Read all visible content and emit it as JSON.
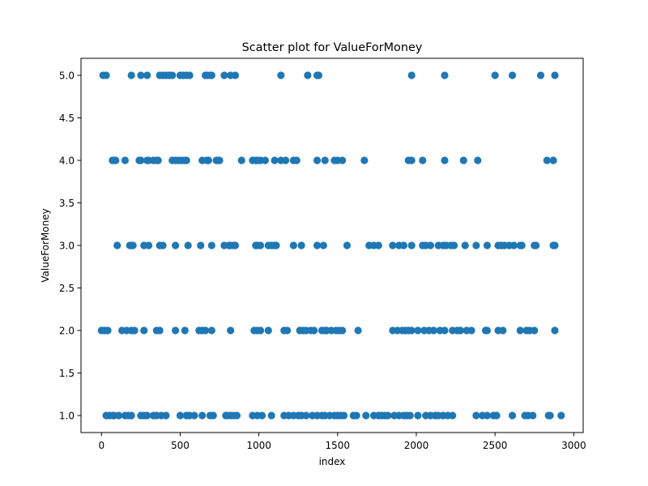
{
  "chart_data": {
    "type": "scatter",
    "title": "Scatter plot for ValueForMoney",
    "xlabel": "index",
    "ylabel": "ValueForMoney",
    "xlim": [
      -130,
      3060
    ],
    "ylim": [
      0.8,
      5.2
    ],
    "xticks": [
      0,
      500,
      1000,
      1500,
      2000,
      2500,
      3000
    ],
    "yticks": [
      1.0,
      1.5,
      2.0,
      2.5,
      3.0,
      3.5,
      4.0,
      4.5,
      5.0
    ],
    "grid": false,
    "marker_color": "#1f77b4",
    "points": {
      "5.0": [
        10,
        30,
        190,
        250,
        290,
        370,
        390,
        410,
        430,
        450,
        500,
        520,
        540,
        560,
        660,
        670,
        690,
        700,
        780,
        820,
        850,
        1140,
        1310,
        1370,
        1380,
        1970,
        2180,
        2500,
        2610,
        2790,
        2880
      ],
      "4.0": [
        70,
        80,
        90,
        150,
        240,
        250,
        290,
        300,
        330,
        350,
        360,
        450,
        470,
        490,
        510,
        530,
        540,
        640,
        670,
        680,
        730,
        740,
        750,
        890,
        960,
        980,
        990,
        1010,
        1040,
        1100,
        1140,
        1170,
        1220,
        1240,
        1370,
        1420,
        1480,
        1500,
        1530,
        1670,
        1950,
        1970,
        2040,
        2180,
        2300,
        2390,
        2830,
        2870
      ],
      "3.0": [
        100,
        180,
        190,
        200,
        270,
        300,
        370,
        390,
        470,
        550,
        630,
        700,
        780,
        810,
        820,
        840,
        850,
        980,
        990,
        1010,
        1060,
        1080,
        1100,
        1110,
        1220,
        1270,
        1370,
        1410,
        1560,
        1700,
        1730,
        1760,
        1850,
        1890,
        1920,
        1970,
        2040,
        2060,
        2090,
        2140,
        2170,
        2190,
        2220,
        2240,
        2310,
        2380,
        2450,
        2520,
        2540,
        2560,
        2590,
        2620,
        2660,
        2670,
        2750,
        2760,
        2870,
        2880
      ],
      "2.0": [
        0,
        20,
        40,
        130,
        160,
        190,
        210,
        270,
        350,
        370,
        470,
        530,
        620,
        640,
        660,
        700,
        820,
        970,
        990,
        1010,
        1060,
        1160,
        1180,
        1260,
        1280,
        1300,
        1330,
        1350,
        1400,
        1420,
        1430,
        1460,
        1490,
        1510,
        1530,
        1630,
        1850,
        1880,
        1910,
        1930,
        1950,
        1970,
        2010,
        2050,
        2080,
        2110,
        2150,
        2180,
        2230,
        2260,
        2280,
        2320,
        2350,
        2440,
        2450,
        2520,
        2550,
        2660,
        2700,
        2720,
        2750,
        2880
      ],
      "1.0": [
        30,
        50,
        70,
        80,
        110,
        150,
        170,
        190,
        250,
        270,
        290,
        330,
        350,
        380,
        410,
        500,
        540,
        560,
        590,
        640,
        690,
        710,
        790,
        800,
        820,
        840,
        860,
        960,
        990,
        1020,
        1080,
        1160,
        1190,
        1220,
        1250,
        1270,
        1300,
        1340,
        1370,
        1400,
        1420,
        1450,
        1480,
        1500,
        1520,
        1540,
        1600,
        1620,
        1680,
        1730,
        1760,
        1780,
        1800,
        1820,
        1860,
        1890,
        1920,
        1940,
        1960,
        2010,
        2060,
        2090,
        2120,
        2140,
        2170,
        2200,
        2230,
        2380,
        2420,
        2450,
        2490,
        2510,
        2610,
        2690,
        2710,
        2740,
        2840,
        2850,
        2920
      ]
    }
  }
}
